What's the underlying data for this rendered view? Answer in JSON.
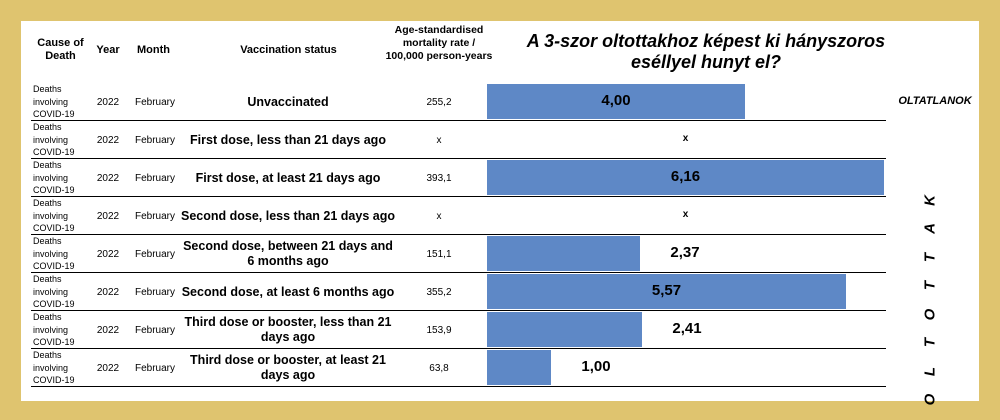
{
  "headers": {
    "cause": "Cause of Death",
    "year": "Year",
    "month": "Month",
    "status": "Vaccination status",
    "rate": "Age-standardised mortality rate / 100,000 person-years"
  },
  "title": "A 3-szor oltottakhoz képest ki hányszoros eséllyel hunyt el?",
  "side_labels": {
    "unvaccinated": "OLTATLANOK",
    "vaccinated": "O L T O T T A K"
  },
  "colors": {
    "bar": "#5e88c6",
    "frame": "#dfc46f"
  },
  "chart_data": {
    "type": "bar",
    "title": "A 3-szor oltottakhoz képest ki hányszoros eséllyel hunyt el?",
    "categories": [
      "Unvaccinated",
      "First dose, less than 21 days ago",
      "First dose, at least 21 days ago",
      "Second dose, less than 21 days ago",
      "Second dose, between 21 days and 6 months ago",
      "Second dose, at least 6 months ago",
      "Third dose or booster, less than 21 days ago",
      "Third dose or booster, at least 21 days ago"
    ],
    "values": [
      4.0,
      null,
      6.16,
      null,
      2.37,
      5.57,
      2.41,
      1.0
    ],
    "value_labels": [
      "4,00",
      "x",
      "6,16",
      "x",
      "2,37",
      "5,57",
      "2,41",
      "1,00"
    ],
    "xlim": [
      0,
      6.16
    ],
    "rows": [
      {
        "cause": "Deaths involving COVID-19",
        "year": "2022",
        "month": "February",
        "status": "Unvaccinated",
        "rate": "255,2"
      },
      {
        "cause": "Deaths involving COVID-19",
        "year": "2022",
        "month": "February",
        "status": "First dose, less than 21 days ago",
        "rate": "x"
      },
      {
        "cause": "Deaths involving COVID-19",
        "year": "2022",
        "month": "February",
        "status": "First dose, at least 21 days ago",
        "rate": "393,1"
      },
      {
        "cause": "Deaths involving COVID-19",
        "year": "2022",
        "month": "February",
        "status": "Second dose, less than 21 days ago",
        "rate": "x"
      },
      {
        "cause": "Deaths involving COVID-19",
        "year": "2022",
        "month": "February",
        "status": "Second dose, between 21 days and 6 months ago",
        "rate": "151,1"
      },
      {
        "cause": "Deaths involving COVID-19",
        "year": "2022",
        "month": "February",
        "status": "Second dose, at least 6 months ago",
        "rate": "355,2"
      },
      {
        "cause": "Deaths involving COVID-19",
        "year": "2022",
        "month": "February",
        "status": "Third dose or booster, less than 21 days ago",
        "rate": "153,9"
      },
      {
        "cause": "Deaths involving COVID-19",
        "year": "2022",
        "month": "February",
        "status": "Third dose or booster, at least 21 days ago",
        "rate": "63,8"
      }
    ]
  }
}
